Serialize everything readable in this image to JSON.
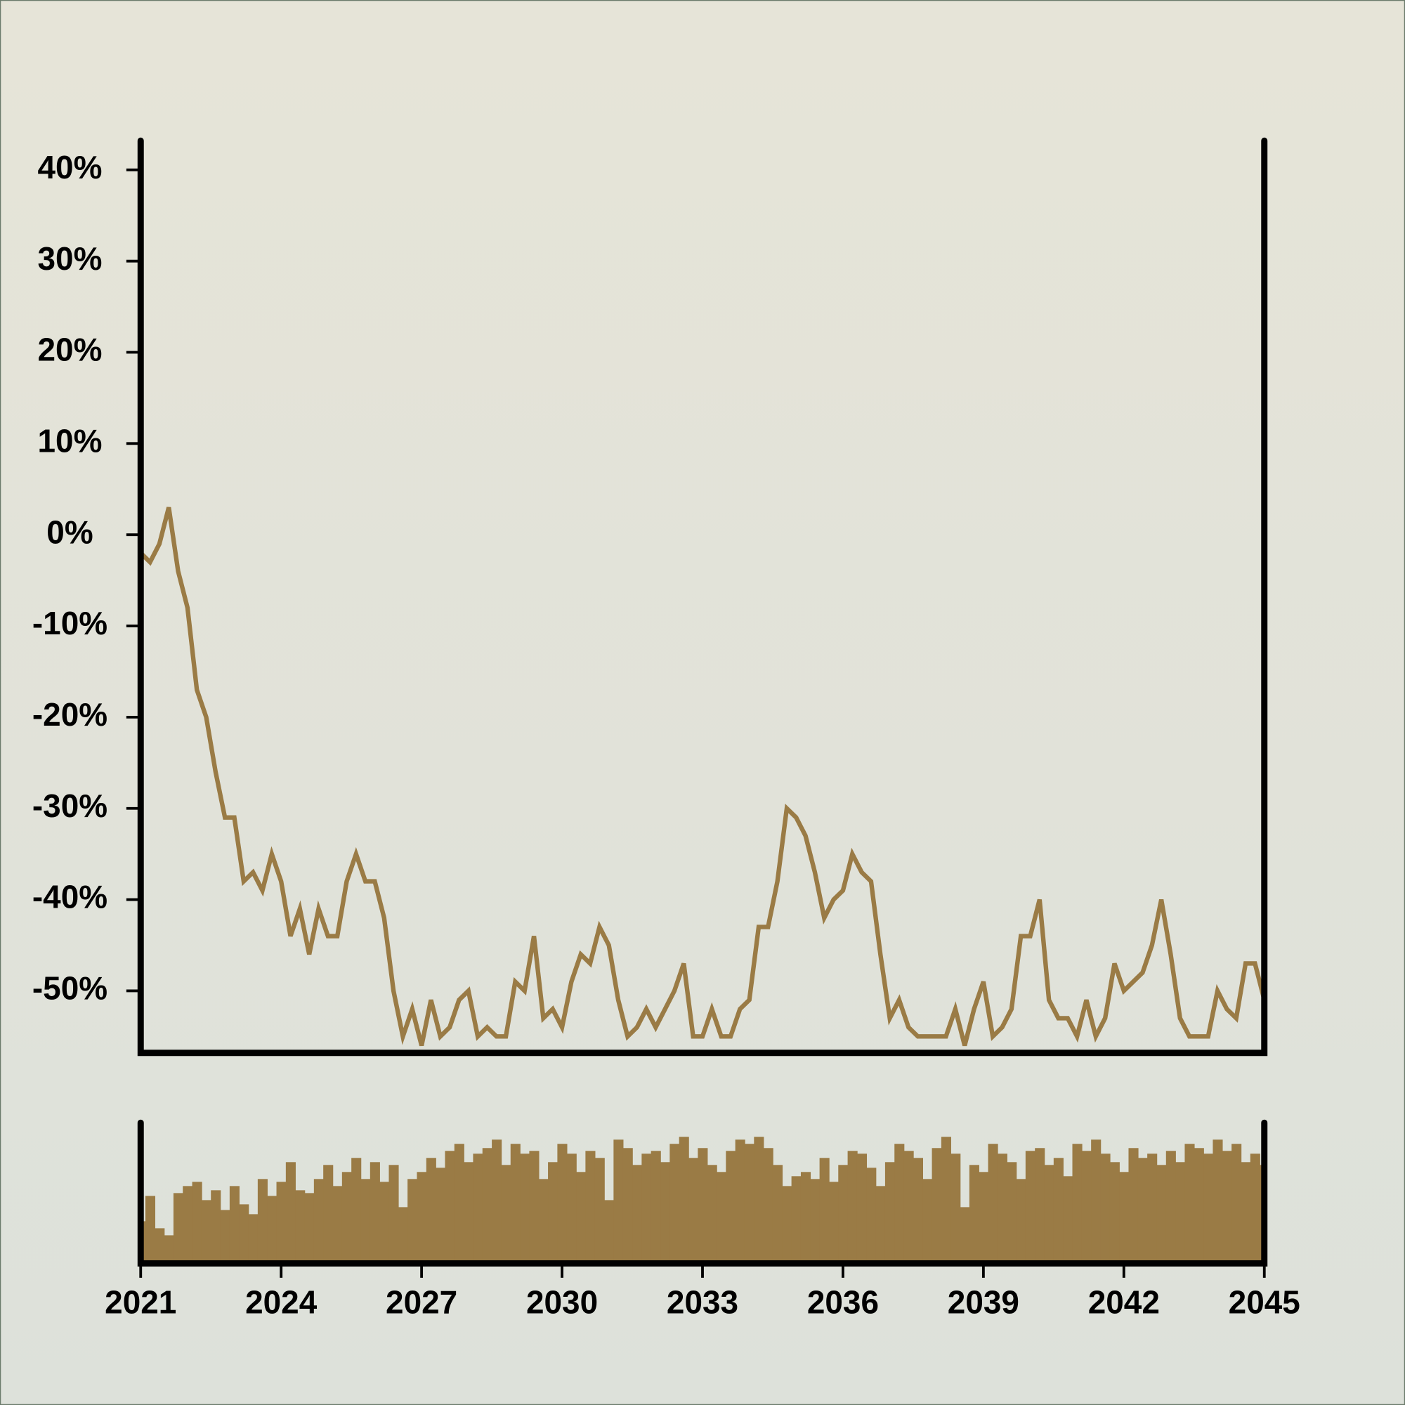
{
  "chart_data": [
    {
      "type": "line",
      "x": [
        2021,
        2021.2,
        2021.4,
        2021.6,
        2021.8,
        2022,
        2022.2,
        2022.4,
        2022.6,
        2022.8,
        2023,
        2023.2,
        2023.4,
        2023.6,
        2023.8,
        2024,
        2024.2,
        2024.4,
        2024.6,
        2024.8,
        2025,
        2025.2,
        2025.4,
        2025.6,
        2025.8,
        2026,
        2026.2,
        2026.4,
        2026.6,
        2026.8,
        2027,
        2027.2,
        2027.4,
        2027.6,
        2027.8,
        2028,
        2028.2,
        2028.4,
        2028.6,
        2028.8,
        2029,
        2029.2,
        2029.4,
        2029.6,
        2029.8,
        2030,
        2030.2,
        2030.4,
        2030.6,
        2030.8,
        2031,
        2031.2,
        2031.4,
        2031.6,
        2031.8,
        2032,
        2032.2,
        2032.4,
        2032.6,
        2032.8,
        2033,
        2033.2,
        2033.4,
        2033.6,
        2033.8,
        2034,
        2034.2,
        2034.4,
        2034.6,
        2034.8,
        2035,
        2035.2,
        2035.4,
        2035.6,
        2035.8,
        2036,
        2036.2,
        2036.4,
        2036.6,
        2036.8,
        2037,
        2037.2,
        2037.4,
        2037.6,
        2037.8,
        2038,
        2038.2,
        2038.4,
        2038.6,
        2038.8,
        2039,
        2039.2,
        2039.4,
        2039.6,
        2039.8,
        2040,
        2040.2,
        2040.4,
        2040.6,
        2040.8,
        2041,
        2041.2,
        2041.4,
        2041.6,
        2041.8,
        2042,
        2042.2,
        2042.4,
        2042.6,
        2042.8,
        2043,
        2043.2,
        2043.4,
        2043.6,
        2043.8,
        2044,
        2044.2,
        2044.4,
        2044.6,
        2044.8,
        2045
      ],
      "values": [
        -2,
        -3,
        -1,
        3,
        -4,
        -8,
        -17,
        -20,
        -26,
        -31,
        -31,
        -38,
        -37,
        -39,
        -35,
        -38,
        -44,
        -41,
        -46,
        -41,
        -44,
        -44,
        -38,
        -35,
        -38,
        -38,
        -42,
        -50,
        -55,
        -52,
        -56,
        -51,
        -55,
        -54,
        -51,
        -50,
        -55,
        -54,
        -55,
        -55,
        -49,
        -50,
        -44,
        -53,
        -52,
        -54,
        -49,
        -46,
        -47,
        -43,
        -45,
        -51,
        -55,
        -54,
        -52,
        -54,
        -52,
        -50,
        -47,
        -55,
        -55,
        -52,
        -55,
        -55,
        -52,
        -51,
        -43,
        -43,
        -38,
        -30,
        -31,
        -33,
        -37,
        -42,
        -40,
        -39,
        -35,
        -37,
        -38,
        -46,
        -53,
        -51,
        -54,
        -55,
        -55,
        -55,
        -55,
        -52,
        -56,
        -52,
        -49,
        -55,
        -54,
        -52,
        -44,
        -44,
        -40,
        -51,
        -53,
        -53,
        -55,
        -51,
        -55,
        -53,
        -47,
        -50,
        -49,
        -48,
        -45,
        -40,
        -46,
        -53,
        -55,
        -55,
        -55,
        -50,
        -52,
        -53,
        -47,
        -47,
        -51
      ],
      "color": "#9a7b45",
      "xlim": [
        2021,
        2045
      ],
      "xticks": [
        2021,
        2024,
        2027,
        2030,
        2033,
        2036,
        2039,
        2042,
        2045
      ],
      "ylim": [
        -56.8,
        43.2
      ],
      "yticks": [
        {
          "value": -50,
          "label": "-50%"
        },
        {
          "value": -40,
          "label": "-40%"
        },
        {
          "value": -30,
          "label": "-30%"
        },
        {
          "value": -20,
          "label": "-20%"
        },
        {
          "value": -10,
          "label": "-10%"
        },
        {
          "value": 0,
          "label": "0%"
        },
        {
          "value": 10,
          "label": "10%"
        },
        {
          "value": 20,
          "label": "20%"
        },
        {
          "value": 30,
          "label": "30%"
        },
        {
          "value": 40,
          "label": "40%"
        }
      ]
    },
    {
      "type": "bar",
      "x": [
        2021,
        2021.2,
        2021.4,
        2021.6,
        2021.8,
        2022,
        2022.2,
        2022.4,
        2022.6,
        2022.8,
        2023,
        2023.2,
        2023.4,
        2023.6,
        2023.8,
        2024,
        2024.2,
        2024.4,
        2024.6,
        2024.8,
        2025,
        2025.2,
        2025.4,
        2025.6,
        2025.8,
        2026,
        2026.2,
        2026.4,
        2026.6,
        2026.8,
        2027,
        2027.2,
        2027.4,
        2027.6,
        2027.8,
        2028,
        2028.2,
        2028.4,
        2028.6,
        2028.8,
        2029,
        2029.2,
        2029.4,
        2029.6,
        2029.8,
        2030,
        2030.2,
        2030.4,
        2030.6,
        2030.8,
        2031,
        2031.2,
        2031.4,
        2031.6,
        2031.8,
        2032,
        2032.2,
        2032.4,
        2032.6,
        2032.8,
        2033,
        2033.2,
        2033.4,
        2033.6,
        2033.8,
        2034,
        2034.2,
        2034.4,
        2034.6,
        2034.8,
        2035,
        2035.2,
        2035.4,
        2035.6,
        2035.8,
        2036,
        2036.2,
        2036.4,
        2036.6,
        2036.8,
        2037,
        2037.2,
        2037.4,
        2037.6,
        2037.8,
        2038,
        2038.2,
        2038.4,
        2038.6,
        2038.8,
        2039,
        2039.2,
        2039.4,
        2039.6,
        2039.8,
        2040,
        2040.2,
        2040.4,
        2040.6,
        2040.8,
        2041,
        2041.2,
        2041.4,
        2041.6,
        2041.8,
        2042,
        2042.2,
        2042.4,
        2042.6,
        2042.8,
        2043,
        2043.2,
        2043.4,
        2043.6,
        2043.8,
        2044,
        2044.2,
        2044.4,
        2044.6,
        2044.8,
        2045
      ],
      "values": [
        30,
        48,
        25,
        20,
        50,
        55,
        58,
        45,
        52,
        38,
        55,
        42,
        35,
        60,
        48,
        58,
        72,
        52,
        50,
        60,
        70,
        55,
        65,
        75,
        60,
        72,
        58,
        70,
        40,
        60,
        65,
        75,
        68,
        80,
        85,
        72,
        78,
        82,
        88,
        70,
        85,
        78,
        80,
        60,
        72,
        85,
        78,
        65,
        80,
        75,
        45,
        88,
        82,
        70,
        78,
        80,
        72,
        85,
        90,
        75,
        82,
        70,
        65,
        80,
        88,
        85,
        90,
        82,
        70,
        55,
        62,
        65,
        60,
        75,
        58,
        70,
        80,
        78,
        68,
        55,
        72,
        85,
        80,
        75,
        60,
        82,
        90,
        78,
        40,
        70,
        65,
        85,
        78,
        72,
        60,
        80,
        82,
        70,
        75,
        62,
        85,
        80,
        88,
        78,
        72,
        65,
        82,
        75,
        78,
        70,
        80,
        72,
        85,
        82,
        78,
        88,
        80,
        85,
        72,
        78,
        70
      ],
      "color": "#9a7b45",
      "xlim": [
        2021,
        2045
      ],
      "ylim": [
        0,
        100
      ]
    }
  ]
}
